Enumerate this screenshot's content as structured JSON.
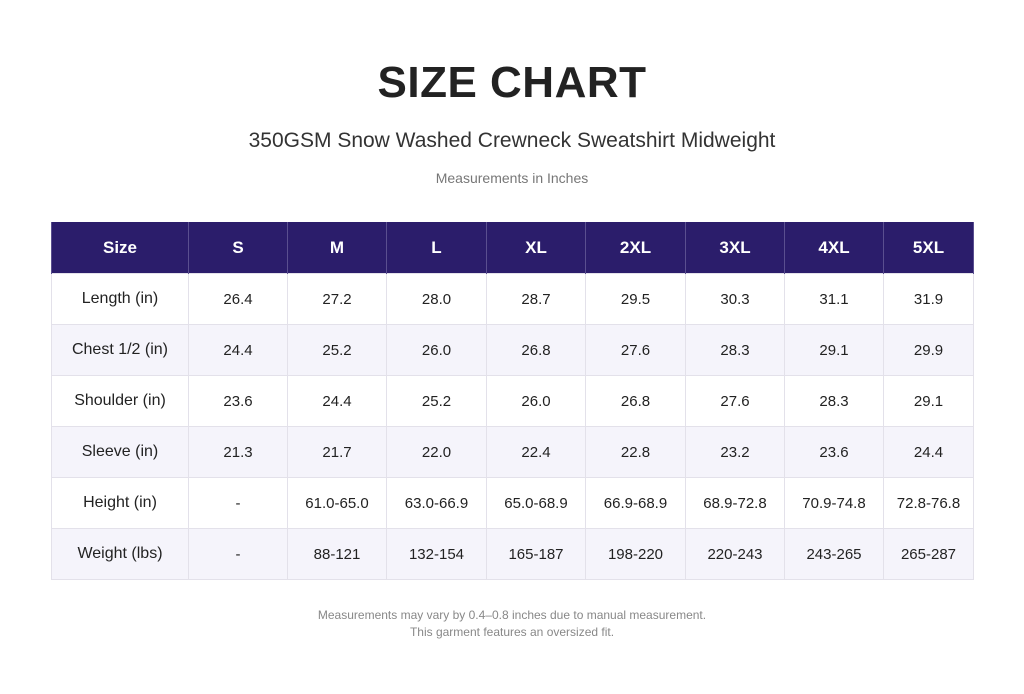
{
  "title": "SIZE CHART",
  "subtitle": "350GSM Snow Washed Crewneck Sweatshirt Midweight",
  "units_note": "Measurements in Inches",
  "colors": {
    "header_bg": "#2b1d6b",
    "header_text": "#ffffff",
    "alt_row_bg": "#f5f4fb"
  },
  "table": {
    "headers": [
      "Size",
      "S",
      "M",
      "L",
      "XL",
      "2XL",
      "3XL",
      "4XL",
      "5XL"
    ],
    "rows": [
      {
        "label": "Length (in)",
        "values": [
          "26.4",
          "27.2",
          "28.0",
          "28.7",
          "29.5",
          "30.3",
          "31.1",
          "31.9"
        ]
      },
      {
        "label": "Chest 1/2 (in)",
        "values": [
          "24.4",
          "25.2",
          "26.0",
          "26.8",
          "27.6",
          "28.3",
          "29.1",
          "29.9"
        ]
      },
      {
        "label": "Shoulder (in)",
        "values": [
          "23.6",
          "24.4",
          "25.2",
          "26.0",
          "26.8",
          "27.6",
          "28.3",
          "29.1"
        ]
      },
      {
        "label": "Sleeve (in)",
        "values": [
          "21.3",
          "21.7",
          "22.0",
          "22.4",
          "22.8",
          "23.2",
          "23.6",
          "24.4"
        ]
      },
      {
        "label": "Height (in)",
        "values": [
          "-",
          "61.0-65.0",
          "63.0-66.9",
          "65.0-68.9",
          "66.9-68.9",
          "68.9-72.8",
          "70.9-74.8",
          "72.8-76.8"
        ]
      },
      {
        "label": "Weight (lbs)",
        "values": [
          "-",
          "88-121",
          "132-154",
          "165-187",
          "198-220",
          "220-243",
          "243-265",
          "265-287"
        ]
      }
    ]
  },
  "footnotes": [
    "Measurements may vary by 0.4–0.8 inches due to manual measurement.",
    "This garment features an oversized fit."
  ]
}
